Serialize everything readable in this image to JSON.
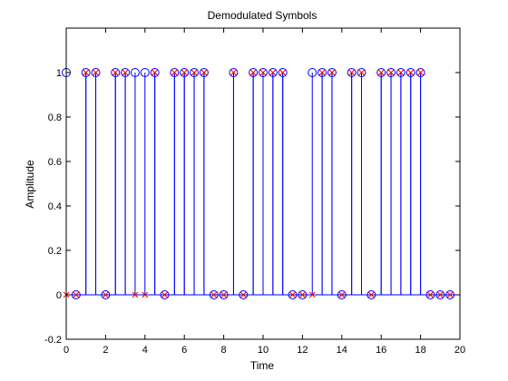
{
  "chart_data": {
    "type": "stem",
    "title": "Demodulated Symbols",
    "xlabel": "Time",
    "ylabel": "Amplitude",
    "xlim": [
      0,
      20
    ],
    "ylim": [
      -0.2,
      1.2
    ],
    "xticks": [
      0,
      2,
      4,
      6,
      8,
      10,
      12,
      14,
      16,
      18,
      20
    ],
    "yticks": [
      -0.2,
      0,
      0.2,
      0.4,
      0.6,
      0.8,
      1
    ],
    "grid": false,
    "legend": "none",
    "colors": {
      "stem": "#0000ff",
      "circle": "#0000ff",
      "cross": "#ff0000"
    },
    "series": [
      {
        "marker": "circle",
        "x": [
          0,
          0.5,
          1,
          1.5,
          2,
          2.5,
          3,
          3.5,
          4,
          4.5,
          5,
          5.5,
          6,
          6.5,
          7,
          7.5,
          8,
          8.5,
          9,
          9.5,
          10,
          10.5,
          11,
          11.5,
          12,
          12.5,
          13,
          13.5,
          14,
          14.5,
          15,
          15.5,
          16,
          16.5,
          17,
          17.5,
          18,
          18.5,
          19,
          19.5
        ],
        "y": [
          1,
          0,
          1,
          1,
          0,
          1,
          1,
          1,
          1,
          1,
          0,
          1,
          1,
          1,
          1,
          0,
          0,
          1,
          0,
          1,
          1,
          1,
          1,
          0,
          0,
          1,
          1,
          1,
          0,
          1,
          1,
          0,
          1,
          1,
          1,
          1,
          1,
          0,
          0,
          0
        ]
      },
      {
        "marker": "cross",
        "x": [
          0,
          0.5,
          1,
          1.5,
          2,
          2.5,
          3,
          3.5,
          4,
          4.5,
          5,
          5.5,
          6,
          6.5,
          7,
          7.5,
          8,
          8.5,
          9,
          9.5,
          10,
          10.5,
          11,
          11.5,
          12,
          12.5,
          13,
          13.5,
          14,
          14.5,
          15,
          15.5,
          16,
          16.5,
          17,
          17.5,
          18,
          18.5,
          19,
          19.5
        ],
        "y": [
          0,
          0,
          1,
          1,
          0,
          1,
          1,
          0,
          0,
          1,
          0,
          1,
          1,
          1,
          1,
          0,
          0,
          1,
          0,
          1,
          1,
          1,
          1,
          0,
          0,
          0,
          1,
          1,
          0,
          1,
          1,
          0,
          1,
          1,
          1,
          1,
          1,
          0,
          0,
          0
        ]
      }
    ]
  }
}
